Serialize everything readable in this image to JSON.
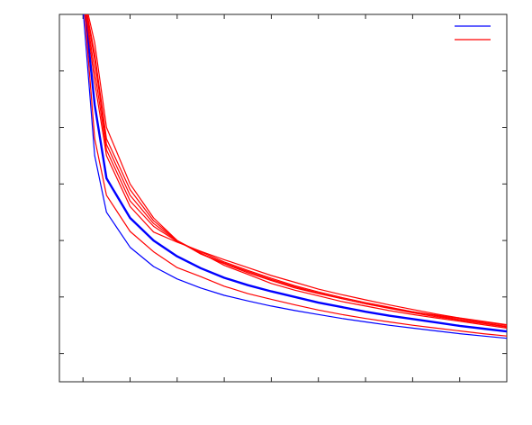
{
  "chart_data": {
    "type": "line",
    "title": "",
    "xlabel": "",
    "ylabel": "",
    "grid": false,
    "legend_position": "top-right",
    "x": [
      1,
      1.5,
      2,
      3,
      4,
      5,
      6,
      7,
      8,
      9,
      10,
      11,
      12,
      13,
      14,
      15,
      16,
      17,
      18,
      19
    ],
    "xlim": [
      0,
      19
    ],
    "ylim": [
      0,
      6.5
    ],
    "xticks": [
      1,
      3,
      5,
      7,
      9,
      11,
      13,
      15,
      17
    ],
    "yticks": [
      0.5,
      1.5,
      2.5,
      3.5,
      4.5,
      5.5
    ],
    "series": [
      {
        "color": "#0000ff",
        "width": 1.2,
        "values": [
          6.6,
          4.0,
          3.0,
          2.38,
          2.04,
          1.82,
          1.66,
          1.53,
          1.43,
          1.34,
          1.26,
          1.19,
          1.12,
          1.06,
          1.0,
          0.95,
          0.9,
          0.85,
          0.81,
          0.77
        ]
      },
      {
        "color": "#0000ff",
        "width": 2.4,
        "values": [
          6.9,
          4.9,
          3.6,
          2.9,
          2.5,
          2.22,
          2.01,
          1.84,
          1.71,
          1.6,
          1.5,
          1.4,
          1.32,
          1.24,
          1.17,
          1.11,
          1.05,
          0.99,
          0.94,
          0.89
        ]
      },
      {
        "color": "#ff0000",
        "width": 1.2,
        "values": [
          6.9,
          4.3,
          3.3,
          2.66,
          2.3,
          2.02,
          1.86,
          1.69,
          1.56,
          1.46,
          1.36,
          1.27,
          1.19,
          1.12,
          1.06,
          1.0,
          0.95,
          0.9,
          0.85,
          0.81
        ]
      },
      {
        "color": "#ff0000",
        "width": 1.2,
        "values": [
          6.9,
          6.0,
          4.5,
          3.5,
          2.9,
          2.5,
          2.28,
          2.06,
          1.9,
          1.74,
          1.62,
          1.52,
          1.42,
          1.34,
          1.26,
          1.19,
          1.13,
          1.07,
          1.01,
          0.95
        ]
      },
      {
        "color": "#ff0000",
        "width": 1.2,
        "values": [
          6.9,
          5.8,
          4.3,
          3.4,
          2.85,
          2.5,
          2.26,
          2.09,
          1.93,
          1.79,
          1.66,
          1.56,
          1.47,
          1.38,
          1.3,
          1.22,
          1.15,
          1.09,
          1.03,
          0.97
        ]
      },
      {
        "color": "#ff0000",
        "width": 1.2,
        "values": [
          6.9,
          5.5,
          4.1,
          3.2,
          2.75,
          2.48,
          2.3,
          2.12,
          1.97,
          1.83,
          1.7,
          1.59,
          1.49,
          1.4,
          1.32,
          1.24,
          1.17,
          1.1,
          1.04,
          0.98
        ]
      },
      {
        "color": "#ff0000",
        "width": 1.2,
        "values": [
          6.9,
          5.3,
          4.0,
          3.1,
          2.65,
          2.47,
          2.31,
          2.16,
          2.02,
          1.88,
          1.76,
          1.64,
          1.54,
          1.45,
          1.36,
          1.28,
          1.2,
          1.13,
          1.07,
          1.01
        ]
      },
      {
        "color": "#ff0000",
        "width": 1.2,
        "values": [
          6.9,
          5.7,
          4.2,
          3.3,
          2.8,
          2.49,
          2.27,
          2.1,
          1.95,
          1.81,
          1.68,
          1.57,
          1.47,
          1.38,
          1.31,
          1.24,
          1.18,
          1.12,
          1.06,
          1.0
        ]
      }
    ],
    "legend": [
      {
        "color": "#0000ff"
      },
      {
        "color": "#ff0000"
      }
    ]
  }
}
